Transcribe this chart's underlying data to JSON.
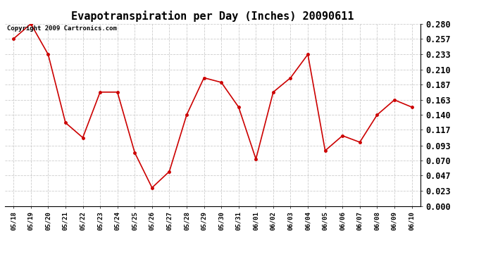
{
  "title": "Evapotranspiration per Day (Inches) 20090611",
  "copyright": "Copyright 2009 Cartronics.com",
  "x_labels": [
    "05/18",
    "05/19",
    "05/20",
    "05/21",
    "05/22",
    "05/23",
    "05/24",
    "05/25",
    "05/26",
    "05/27",
    "05/28",
    "05/29",
    "05/30",
    "05/31",
    "06/01",
    "06/02",
    "06/03",
    "06/04",
    "06/05",
    "06/06",
    "06/07",
    "06/08",
    "06/09",
    "06/10"
  ],
  "y_values": [
    0.257,
    0.28,
    0.233,
    0.128,
    0.105,
    0.175,
    0.175,
    0.082,
    0.028,
    0.053,
    0.14,
    0.197,
    0.19,
    0.152,
    0.072,
    0.175,
    0.197,
    0.233,
    0.085,
    0.108,
    0.098,
    0.14,
    0.163,
    0.152
  ],
  "line_color": "#cc0000",
  "marker": "o",
  "marker_size": 2.5,
  "marker_color": "#cc0000",
  "bg_color": "#ffffff",
  "grid_color": "#cccccc",
  "y_min": 0.0,
  "y_max": 0.28,
  "y_ticks": [
    0.0,
    0.023,
    0.047,
    0.07,
    0.093,
    0.117,
    0.14,
    0.163,
    0.187,
    0.21,
    0.233,
    0.257,
    0.28
  ],
  "title_fontsize": 11,
  "copyright_fontsize": 6.5,
  "xtick_fontsize": 6.5,
  "ytick_fontsize": 8.5
}
